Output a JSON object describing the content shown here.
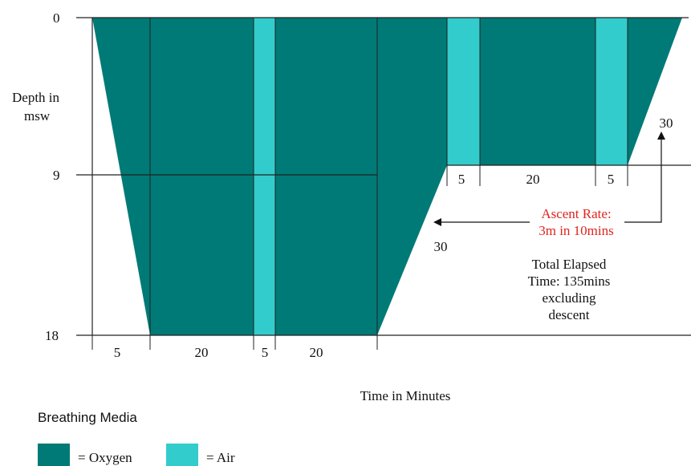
{
  "colors": {
    "oxygen": "#007a76",
    "air": "#33cccc",
    "ascent_text": "#e0241f"
  },
  "y_axis": {
    "label_line1": "Depth in",
    "label_line2": "msw",
    "ticks": [
      "0",
      "9",
      "18"
    ]
  },
  "x_axis": {
    "label": "Time in Minutes"
  },
  "segment_labels": {
    "bottom": [
      "5",
      "20",
      "5",
      "20"
    ],
    "shallow": [
      "5",
      "20",
      "5"
    ],
    "ascent_deep": "30",
    "ascent_shallow": "30"
  },
  "profile": [
    {
      "phase": "descent",
      "media": "oxygen",
      "minutes": 5
    },
    {
      "phase": "18 msw",
      "media": "oxygen",
      "minutes": 20
    },
    {
      "phase": "18 msw",
      "media": "air",
      "minutes": 5
    },
    {
      "phase": "18 msw",
      "media": "oxygen",
      "minutes": 20
    },
    {
      "phase": "ascent 18 to 9 msw",
      "media": "oxygen",
      "minutes": 30
    },
    {
      "phase": "9 msw",
      "media": "air",
      "minutes": 5
    },
    {
      "phase": "9 msw",
      "media": "oxygen",
      "minutes": 20
    },
    {
      "phase": "9 msw",
      "media": "air",
      "minutes": 5
    },
    {
      "phase": "ascent 9 to 0 msw",
      "media": "oxygen",
      "minutes": 30
    }
  ],
  "annotations": {
    "ascent_rate_line1": "Ascent Rate:",
    "ascent_rate_line2": "3m in 10mins",
    "elapsed_line1": "Total Elapsed",
    "elapsed_line2": "Time: 135mins",
    "elapsed_line3": "excluding",
    "elapsed_line4": "descent"
  },
  "legend": {
    "title": "Breathing Media",
    "oxygen_label": "= Oxygen",
    "air_label": "= Air"
  }
}
